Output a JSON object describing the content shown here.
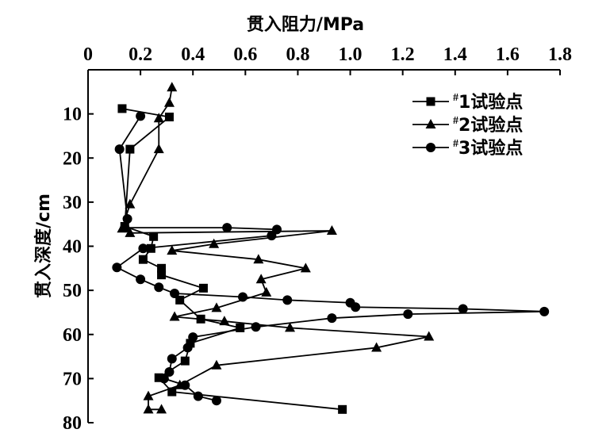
{
  "chart_data": {
    "type": "line",
    "x_axis_position": "top",
    "y_axis_inverted": true,
    "xlabel": "贯入阻力/MPa",
    "ylabel": "贯入深度/cm",
    "xlim": [
      0,
      1.8
    ],
    "ylim": [
      0,
      80
    ],
    "xticks": [
      "0",
      "0.2",
      "0.4",
      "0.6",
      "0.8",
      "1.0",
      "1.2",
      "1.4",
      "1.6",
      "1.8"
    ],
    "yticks": [
      "10",
      "20",
      "30",
      "40",
      "50",
      "60",
      "70",
      "80"
    ],
    "grid": false,
    "legend_position": "top-right",
    "series": [
      {
        "name": "#1试验点",
        "marker": "square",
        "points": [
          [
            0.13,
            8.8
          ],
          [
            0.31,
            10.7
          ],
          [
            0.16,
            18.0
          ],
          [
            0.14,
            35.5
          ],
          [
            0.25,
            37.8
          ],
          [
            0.24,
            40.5
          ],
          [
            0.21,
            43.0
          ],
          [
            0.28,
            45.0
          ],
          [
            0.28,
            46.5
          ],
          [
            0.44,
            49.5
          ],
          [
            0.35,
            52.2
          ],
          [
            0.43,
            56.5
          ],
          [
            0.58,
            58.5
          ],
          [
            0.39,
            62.0
          ],
          [
            0.37,
            66.0
          ],
          [
            0.27,
            69.8
          ],
          [
            0.32,
            73.0
          ],
          [
            0.97,
            77.0
          ]
        ]
      },
      {
        "name": "#2试验点",
        "marker": "triangle",
        "points": [
          [
            0.32,
            4.0
          ],
          [
            0.31,
            7.5
          ],
          [
            0.27,
            11.0
          ],
          [
            0.27,
            18.0
          ],
          [
            0.16,
            30.5
          ],
          [
            0.13,
            36.0
          ],
          [
            0.16,
            37.0
          ],
          [
            0.93,
            36.5
          ],
          [
            0.48,
            39.5
          ],
          [
            0.32,
            41.0
          ],
          [
            0.65,
            43.0
          ],
          [
            0.83,
            45.0
          ],
          [
            0.66,
            47.5
          ],
          [
            0.68,
            50.5
          ],
          [
            0.49,
            54.0
          ],
          [
            0.33,
            56.0
          ],
          [
            0.52,
            57.0
          ],
          [
            0.77,
            58.5
          ],
          [
            1.3,
            60.5
          ],
          [
            1.1,
            63.0
          ],
          [
            0.49,
            67.0
          ],
          [
            0.35,
            71.5
          ],
          [
            0.23,
            74.0
          ],
          [
            0.23,
            77.0
          ],
          [
            0.28,
            77.0
          ]
        ]
      },
      {
        "name": "#3试验点",
        "marker": "circle",
        "points": [
          [
            0.2,
            10.5
          ],
          [
            0.12,
            18.0
          ],
          [
            0.15,
            33.8
          ],
          [
            0.14,
            35.8
          ],
          [
            0.53,
            35.8
          ],
          [
            0.72,
            36.2
          ],
          [
            0.7,
            37.6
          ],
          [
            0.21,
            40.5
          ],
          [
            0.11,
            44.8
          ],
          [
            0.2,
            47.5
          ],
          [
            0.27,
            49.3
          ],
          [
            0.33,
            50.7
          ],
          [
            0.59,
            51.5
          ],
          [
            0.76,
            52.2
          ],
          [
            1.0,
            52.8
          ],
          [
            1.02,
            53.8
          ],
          [
            1.43,
            54.2
          ],
          [
            1.74,
            54.8
          ],
          [
            1.22,
            55.4
          ],
          [
            0.93,
            56.3
          ],
          [
            0.64,
            58.3
          ],
          [
            0.4,
            60.6
          ],
          [
            0.38,
            63.0
          ],
          [
            0.32,
            65.5
          ],
          [
            0.31,
            68.5
          ],
          [
            0.29,
            70.0
          ],
          [
            0.37,
            71.5
          ],
          [
            0.42,
            74.0
          ],
          [
            0.49,
            75.0
          ]
        ]
      }
    ]
  }
}
